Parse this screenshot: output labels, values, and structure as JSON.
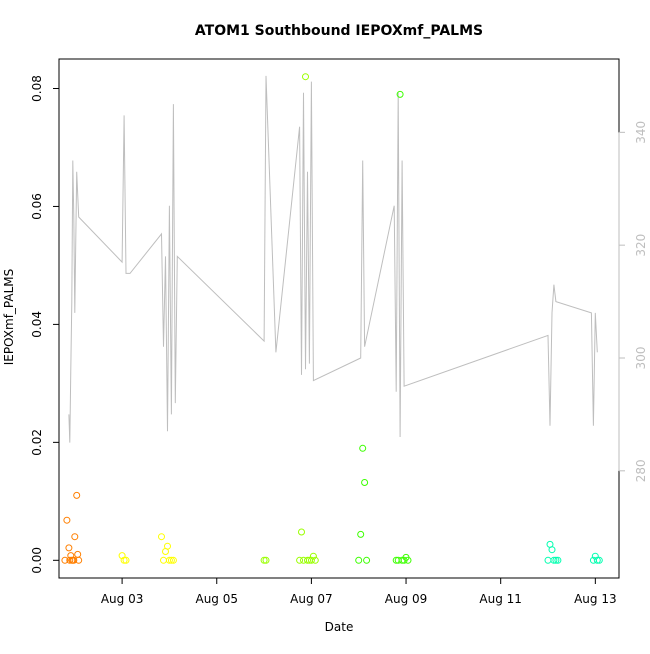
{
  "chart_data": {
    "type": "scatter",
    "title": "ATOM1 Southbound IEPOXmf_PALMS",
    "xlabel": "Date",
    "ylabel": "IEPOXmf_PALMS",
    "x_axis": {
      "type": "date",
      "range": [
        "2016-08-01T16:00",
        "2016-08-13T12:00"
      ],
      "ticks": [
        {
          "value": "2016-08-03",
          "label": "Aug 03"
        },
        {
          "value": "2016-08-05",
          "label": "Aug 05"
        },
        {
          "value": "2016-08-07",
          "label": "Aug 07"
        },
        {
          "value": "2016-08-09",
          "label": "Aug 09"
        },
        {
          "value": "2016-08-11",
          "label": "Aug 11"
        },
        {
          "value": "2016-08-13",
          "label": "Aug 13"
        }
      ]
    },
    "y_axis": {
      "range": [
        -0.003,
        0.085
      ],
      "ticks": [
        {
          "value": 0.0,
          "label": "0.00"
        },
        {
          "value": 0.02,
          "label": "0.02"
        },
        {
          "value": 0.04,
          "label": "0.04"
        },
        {
          "value": 0.06,
          "label": "0.06"
        },
        {
          "value": 0.08,
          "label": "0.08"
        }
      ]
    },
    "y2_axis": {
      "range": [
        261,
        353
      ],
      "ticks": [
        {
          "value": 280,
          "label": "280"
        },
        {
          "value": 300,
          "label": "300"
        },
        {
          "value": 320,
          "label": "320"
        },
        {
          "value": 340,
          "label": "340"
        }
      ],
      "color": "#bebebe"
    },
    "line_series": {
      "axis": "y2",
      "color": "#bebebe",
      "points": [
        [
          "2016-08-01T21:00",
          290
        ],
        [
          "2016-08-01T21:30",
          285
        ],
        [
          "2016-08-01T22:00",
          298
        ],
        [
          "2016-08-01T22:30",
          310
        ],
        [
          "2016-08-01T23:00",
          335
        ],
        [
          "2016-08-01T23:30",
          325
        ],
        [
          "2016-08-02T00:00",
          308
        ],
        [
          "2016-08-02T01:00",
          333
        ],
        [
          "2016-08-02T02:00",
          325
        ],
        [
          "2016-08-03T00:00",
          317
        ],
        [
          "2016-08-03T01:00",
          343
        ],
        [
          "2016-08-03T02:00",
          315
        ],
        [
          "2016-08-03T04:00",
          315
        ],
        [
          "2016-08-03T20:00",
          322
        ],
        [
          "2016-08-03T21:00",
          302
        ],
        [
          "2016-08-03T22:00",
          318
        ],
        [
          "2016-08-03T23:00",
          287
        ],
        [
          "2016-08-04T00:00",
          327
        ],
        [
          "2016-08-04T01:00",
          290
        ],
        [
          "2016-08-04T02:00",
          345
        ],
        [
          "2016-08-04T03:00",
          292
        ],
        [
          "2016-08-04T04:00",
          318
        ],
        [
          "2016-08-06T00:00",
          303
        ],
        [
          "2016-08-06T01:00",
          350
        ],
        [
          "2016-08-06T06:00",
          301
        ],
        [
          "2016-08-06T18:00",
          341
        ],
        [
          "2016-08-06T19:00",
          297
        ],
        [
          "2016-08-06T20:00",
          347
        ],
        [
          "2016-08-06T21:00",
          298
        ],
        [
          "2016-08-06T22:00",
          333
        ],
        [
          "2016-08-06T23:00",
          299
        ],
        [
          "2016-08-07T00:00",
          349
        ],
        [
          "2016-08-07T01:00",
          296
        ],
        [
          "2016-08-08T01:00",
          300
        ],
        [
          "2016-08-08T02:00",
          335
        ],
        [
          "2016-08-08T03:00",
          302
        ],
        [
          "2016-08-08T18:00",
          327
        ],
        [
          "2016-08-08T19:00",
          294
        ],
        [
          "2016-08-08T20:00",
          347
        ],
        [
          "2016-08-08T21:00",
          286
        ],
        [
          "2016-08-08T22:00",
          335
        ],
        [
          "2016-08-08T23:00",
          295
        ],
        [
          "2016-08-12T00:00",
          304
        ],
        [
          "2016-08-12T01:00",
          288
        ],
        [
          "2016-08-12T02:00",
          308
        ],
        [
          "2016-08-12T03:00",
          313
        ],
        [
          "2016-08-12T04:00",
          310
        ],
        [
          "2016-08-12T22:00",
          308
        ],
        [
          "2016-08-12T23:00",
          288
        ],
        [
          "2016-08-13T00:00",
          308
        ],
        [
          "2016-08-13T01:00",
          301
        ]
      ]
    },
    "scatter_series": [
      {
        "color": "#ff7f00",
        "points": [
          [
            "2016-08-01T20:00",
            0.0068
          ],
          [
            "2016-08-01T21:00",
            0.0021
          ],
          [
            "2016-08-01T22:00",
            0.0008
          ],
          [
            "2016-08-01T22:30",
            0.0
          ],
          [
            "2016-08-01T23:00",
            0.0
          ],
          [
            "2016-08-01T23:30",
            0.0
          ],
          [
            "2016-08-02T00:00",
            0.004
          ],
          [
            "2016-08-02T01:00",
            0.011
          ],
          [
            "2016-08-02T01:30",
            0.001
          ],
          [
            "2016-08-02T02:00",
            0.0
          ],
          [
            "2016-08-01T19:00",
            0.0
          ],
          [
            "2016-08-01T21:30",
            0.0
          ]
        ]
      },
      {
        "color": "#ffff00",
        "points": [
          [
            "2016-08-03T00:00",
            0.0008
          ],
          [
            "2016-08-03T01:00",
            0.0
          ],
          [
            "2016-08-03T02:00",
            0.0
          ],
          [
            "2016-08-03T20:00",
            0.004
          ],
          [
            "2016-08-03T21:00",
            0.0
          ],
          [
            "2016-08-03T22:00",
            0.0015
          ],
          [
            "2016-08-03T23:00",
            0.0024
          ],
          [
            "2016-08-04T00:00",
            0.0
          ],
          [
            "2016-08-04T01:00",
            0.0
          ],
          [
            "2016-08-04T02:00",
            0.0
          ]
        ]
      },
      {
        "color": "#9aff00",
        "points": [
          [
            "2016-08-06T00:00",
            0.0
          ],
          [
            "2016-08-06T01:00",
            0.0
          ],
          [
            "2016-08-06T18:00",
            0.0
          ],
          [
            "2016-08-06T19:00",
            0.0048
          ],
          [
            "2016-08-06T20:00",
            0.0
          ],
          [
            "2016-08-06T21:00",
            0.082
          ],
          [
            "2016-08-06T22:00",
            0.0
          ],
          [
            "2016-08-06T23:00",
            0.0
          ],
          [
            "2016-08-07T00:00",
            0.0
          ],
          [
            "2016-08-07T01:00",
            0.0007
          ],
          [
            "2016-08-07T02:00",
            0.0
          ]
        ]
      },
      {
        "color": "#3cff00",
        "points": [
          [
            "2016-08-08T01:00",
            0.0044
          ],
          [
            "2016-08-08T02:00",
            0.019
          ],
          [
            "2016-08-08T03:00",
            0.0132
          ],
          [
            "2016-08-08T04:00",
            0.0
          ],
          [
            "2016-08-08T00:00",
            0.0
          ],
          [
            "2016-08-08T19:00",
            0.0
          ],
          [
            "2016-08-08T20:00",
            0.0
          ],
          [
            "2016-08-08T21:00",
            0.079
          ],
          [
            "2016-08-08T22:00",
            0.0
          ],
          [
            "2016-08-08T23:00",
            0.0
          ],
          [
            "2016-08-09T00:00",
            0.0005
          ],
          [
            "2016-08-09T01:00",
            0.0
          ]
        ]
      },
      {
        "color": "#00ffb0",
        "points": [
          [
            "2016-08-12T00:00",
            0.0
          ],
          [
            "2016-08-12T01:00",
            0.0027
          ],
          [
            "2016-08-12T02:00",
            0.0018
          ],
          [
            "2016-08-12T03:00",
            0.0
          ],
          [
            "2016-08-12T04:00",
            0.0
          ],
          [
            "2016-08-12T05:00",
            0.0
          ],
          [
            "2016-08-13T00:00",
            0.0007
          ],
          [
            "2016-08-13T01:00",
            0.0
          ],
          [
            "2016-08-13T02:00",
            0.0
          ],
          [
            "2016-08-12T23:00",
            0.0
          ]
        ]
      }
    ]
  }
}
